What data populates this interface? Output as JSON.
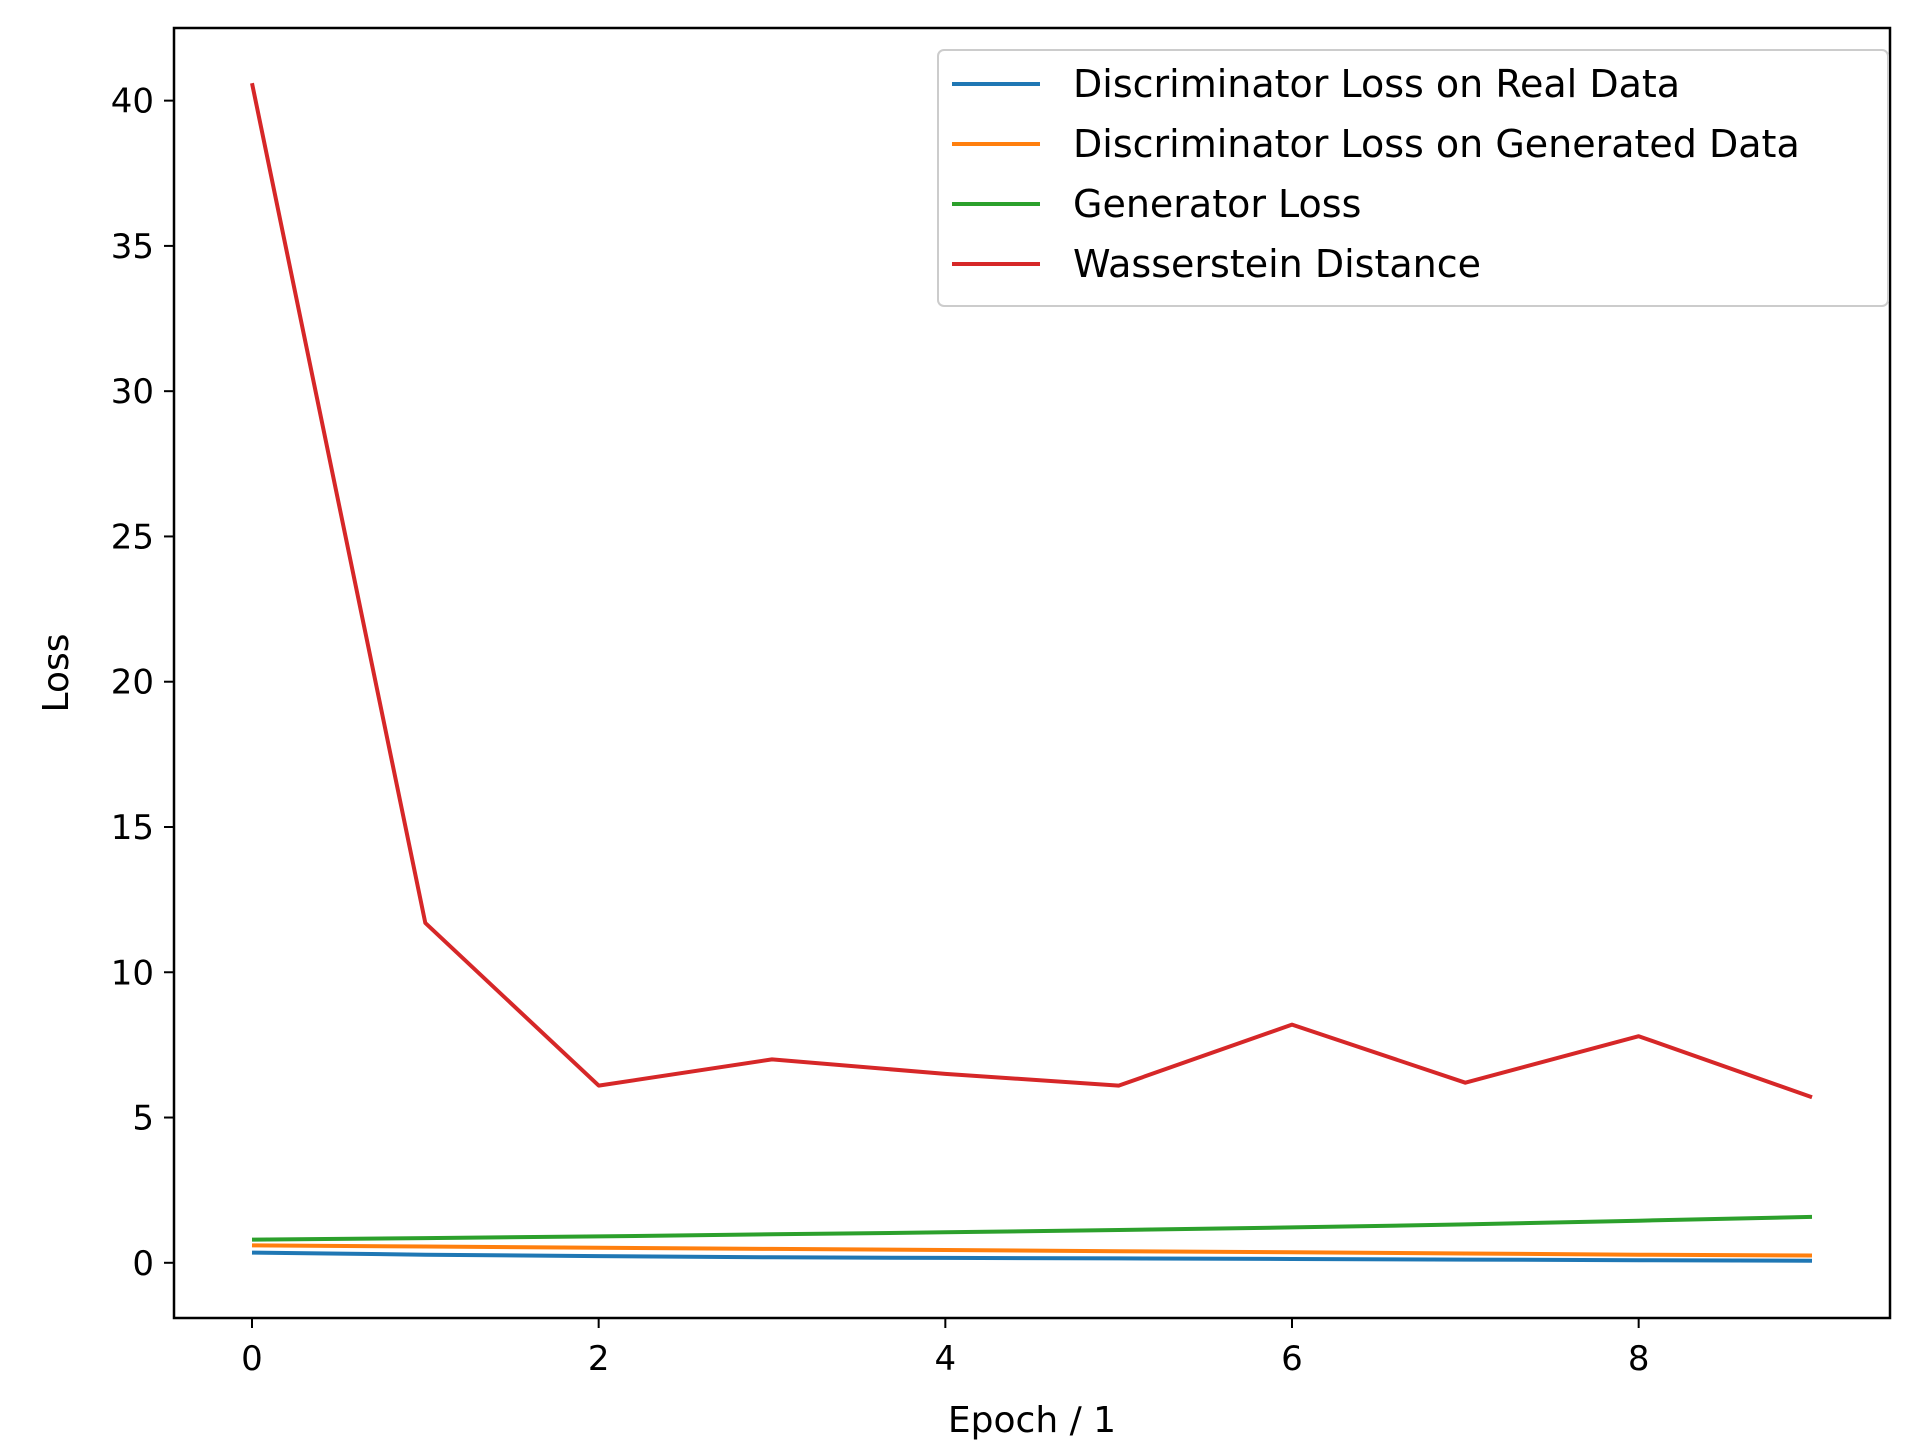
{
  "chart_data": {
    "type": "line",
    "title": "",
    "xlabel": "Epoch / 1",
    "ylabel": "Loss",
    "x": [
      0,
      1,
      2,
      3,
      4,
      5,
      6,
      7,
      8,
      9
    ],
    "xlim": [
      -0.45,
      9.45
    ],
    "ylim": [
      -1.9,
      42.5
    ],
    "xticks": [
      0,
      2,
      4,
      6,
      8
    ],
    "yticks": [
      0,
      5,
      10,
      15,
      20,
      25,
      30,
      35,
      40
    ],
    "grid": false,
    "legend_position": "top-right",
    "series": [
      {
        "name": "Discriminator Loss on Real Data",
        "color": "#1f77b4",
        "values": [
          0.35,
          0.28,
          0.23,
          0.19,
          0.17,
          0.15,
          0.13,
          0.11,
          0.09,
          0.07
        ]
      },
      {
        "name": "Discriminator Loss on Generated Data",
        "color": "#ff7f0e",
        "values": [
          0.6,
          0.56,
          0.52,
          0.48,
          0.44,
          0.4,
          0.36,
          0.32,
          0.28,
          0.25
        ]
      },
      {
        "name": "Generator Loss",
        "color": "#2ca02c",
        "values": [
          0.8,
          0.85,
          0.91,
          0.98,
          1.05,
          1.13,
          1.22,
          1.32,
          1.45,
          1.58
        ]
      },
      {
        "name": "Wasserstein Distance",
        "color": "#d62728",
        "values": [
          40.6,
          11.7,
          6.1,
          7.0,
          6.5,
          6.1,
          8.2,
          6.2,
          7.8,
          5.7
        ]
      }
    ]
  }
}
